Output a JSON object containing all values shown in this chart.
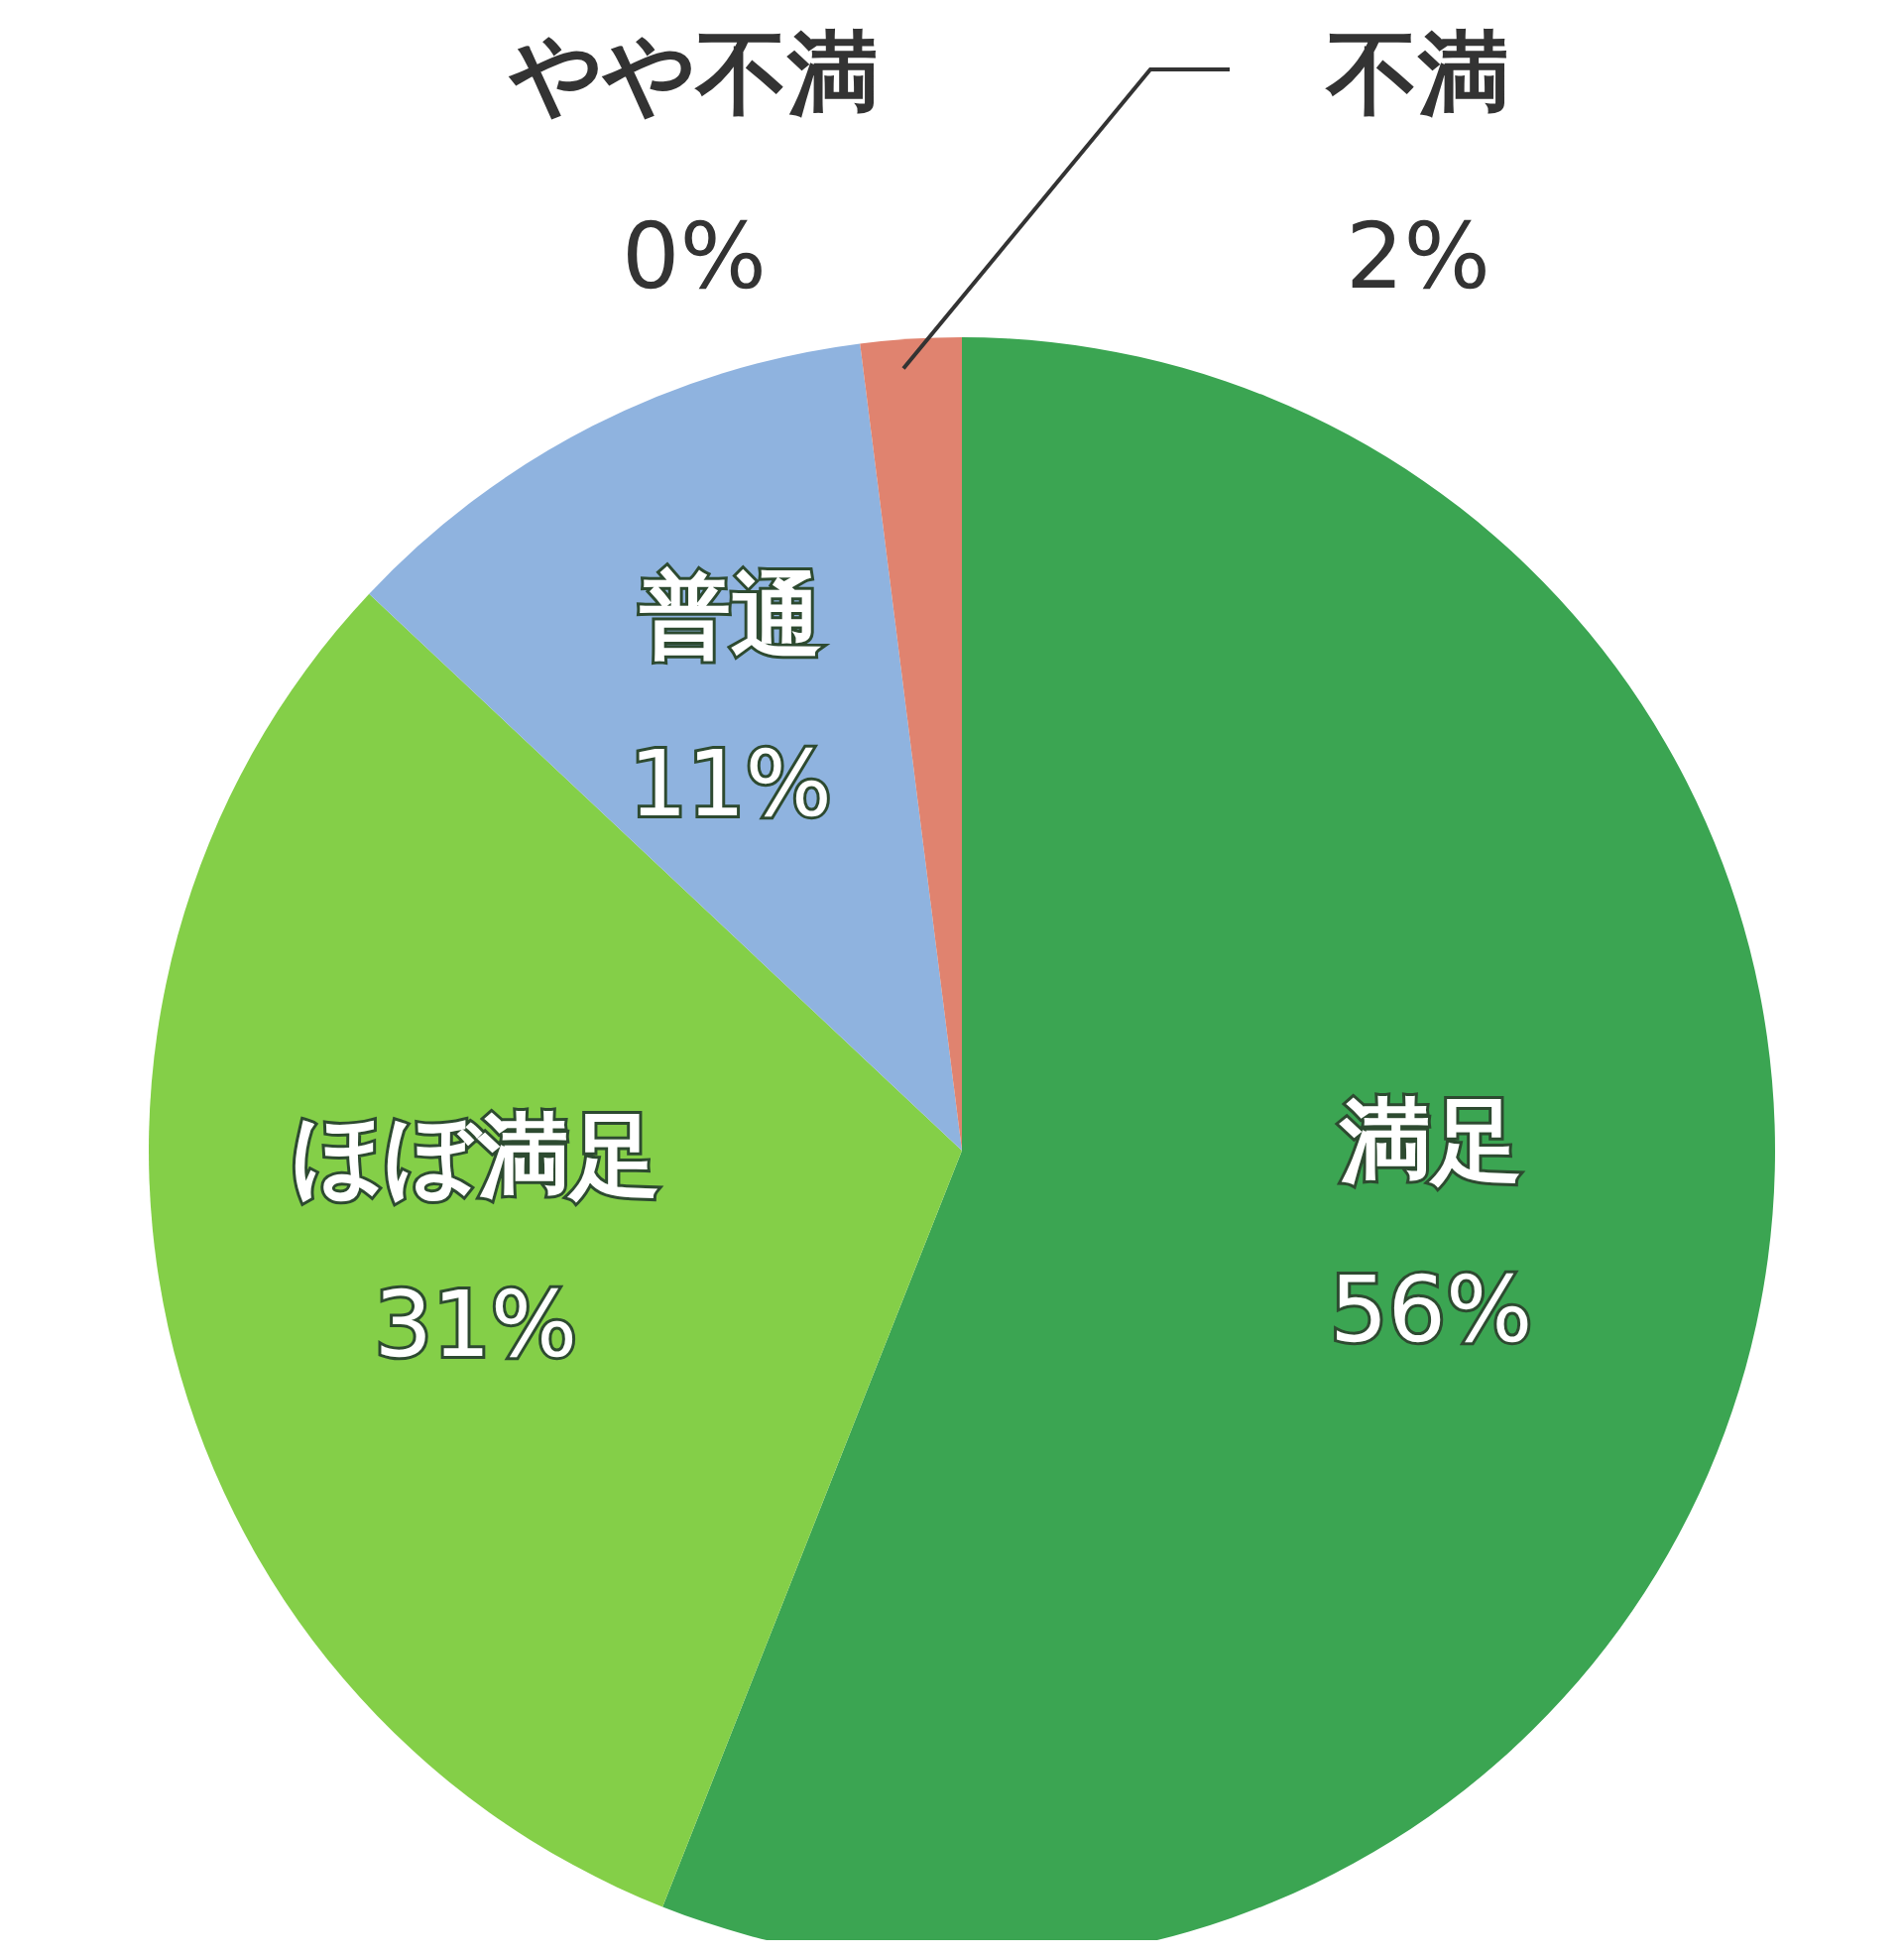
{
  "chart_data": {
    "type": "pie",
    "categories": [
      "満足",
      "ほぼ満足",
      "普通",
      "やや不満",
      "不満"
    ],
    "values": [
      56,
      31,
      11,
      0,
      2
    ],
    "colors": [
      "#3ba552",
      "#84cf48",
      "#8fb3df",
      "#e8a090",
      "#e0836f"
    ],
    "value_labels": [
      "56%",
      "31%",
      "11%",
      "0%",
      "2%"
    ],
    "legend": false
  }
}
